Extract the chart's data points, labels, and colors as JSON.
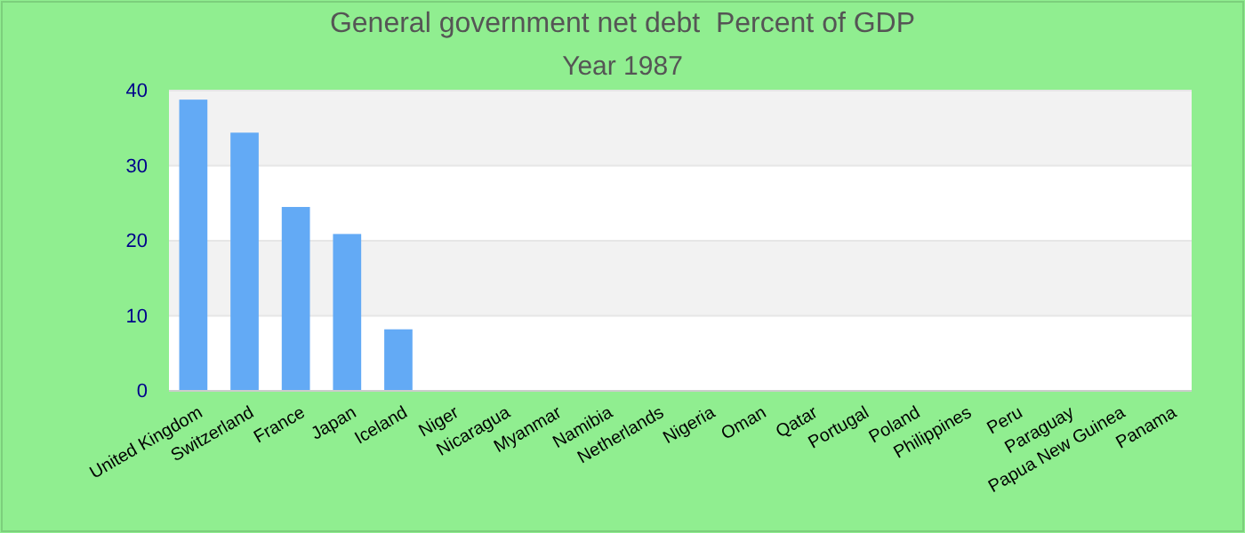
{
  "chart_data": {
    "type": "bar",
    "title": "General government net debt  Percent of GDP",
    "subtitle": "Year 1987",
    "categories": [
      "United Kingdom",
      "Switzerland",
      "France",
      "Japan",
      "Iceland",
      "Niger",
      "Nicaragua",
      "Myanmar",
      "Namibia",
      "Netherlands",
      "Nigeria",
      "Oman",
      "Qatar",
      "Portugal",
      "Poland",
      "Philippines",
      "Peru",
      "Paraguay",
      "Papua New Guinea",
      "Panama"
    ],
    "values": [
      38.8,
      34.4,
      24.5,
      20.9,
      8.2,
      null,
      null,
      null,
      null,
      null,
      null,
      null,
      null,
      null,
      null,
      null,
      null,
      null,
      null,
      null
    ],
    "color": "#63aaf5",
    "ylim": [
      0,
      40
    ],
    "yticks": [
      0,
      10,
      20,
      30,
      40
    ],
    "grid": "y"
  }
}
